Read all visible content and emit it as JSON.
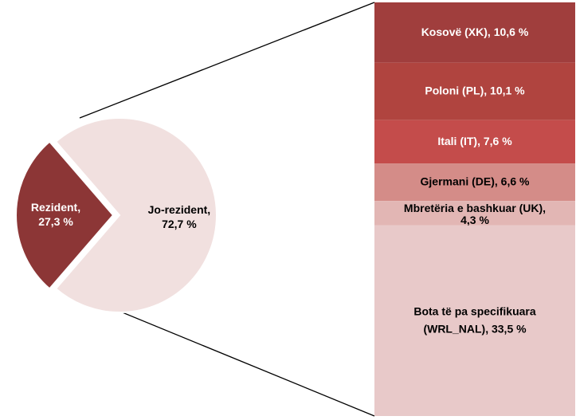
{
  "chart_data": [
    {
      "type": "pie",
      "categories": [
        "Rezident",
        "Jo-rezident"
      ],
      "values": [
        27.3,
        72.7
      ],
      "value_labels": [
        [
          "Rezident,",
          "27,3 %"
        ],
        [
          "Jo-rezident,",
          "72,7 %"
        ]
      ],
      "colors": [
        "#8c3636",
        "#f1e0df"
      ],
      "label_colors": [
        "#ffffff",
        "#000000"
      ]
    },
    {
      "type": "stacked-bar",
      "categories": [
        "Kosovë (XK)",
        "Poloni (PL)",
        "Itali (IT)",
        "Gjermani (DE)",
        "Mbretëria e bashkuar (UK)",
        "Bota të pa specifikuara (WRL_NAL)"
      ],
      "values": [
        10.6,
        10.1,
        7.6,
        6.6,
        4.3,
        33.5
      ],
      "value_labels": [
        [
          "Kosovë (XK), 10,6 %"
        ],
        [
          "Poloni (PL), 10,1 %"
        ],
        [
          "Itali (IT), 7,6 %"
        ],
        [
          "Gjermani (DE), 6,6 %"
        ],
        [
          "Mbretëria e bashkuar (UK),",
          "4,3 %"
        ],
        [
          "Bota të pa specifikuara",
          "(WRL_NAL), 33,5 %"
        ]
      ],
      "colors": [
        "#a03e3d",
        "#b0443f",
        "#c44c4b",
        "#d48c88",
        "#e2b6b4",
        "#e8c9c9"
      ],
      "label_colors": [
        "#ffffff",
        "#ffffff",
        "#ffffff",
        "#000000",
        "#000000",
        "#000000"
      ]
    }
  ]
}
